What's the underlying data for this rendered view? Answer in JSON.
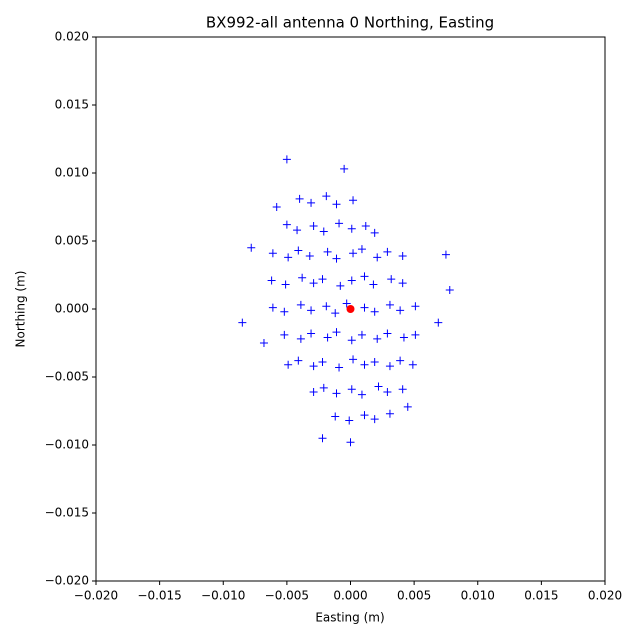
{
  "chart_data": {
    "type": "scatter",
    "title": "BX992-all antenna 0 Northing, Easting",
    "xlabel": "Easting (m)",
    "ylabel": "Northing (m)",
    "xlim": [
      -0.02,
      0.02
    ],
    "ylim": [
      -0.02,
      0.02
    ],
    "xticks": [
      {
        "value": -0.02,
        "label": "−0.020"
      },
      {
        "value": -0.015,
        "label": "−0.015"
      },
      {
        "value": -0.01,
        "label": "−0.010"
      },
      {
        "value": -0.005,
        "label": "−0.005"
      },
      {
        "value": 0,
        "label": "0.000"
      },
      {
        "value": 0.005,
        "label": "0.005"
      },
      {
        "value": 0.01,
        "label": "0.010"
      },
      {
        "value": 0.015,
        "label": "0.015"
      },
      {
        "value": 0.02,
        "label": "0.020"
      }
    ],
    "yticks": [
      {
        "value": -0.02,
        "label": "−0.020"
      },
      {
        "value": -0.015,
        "label": "−0.015"
      },
      {
        "value": -0.01,
        "label": "−0.010"
      },
      {
        "value": -0.005,
        "label": "−0.005"
      },
      {
        "value": 0,
        "label": "0.000"
      },
      {
        "value": 0.005,
        "label": "0.005"
      },
      {
        "value": 0.01,
        "label": "0.010"
      },
      {
        "value": 0.015,
        "label": "0.015"
      },
      {
        "value": 0.02,
        "label": "0.020"
      }
    ],
    "series": [
      {
        "color": "#0000ff",
        "marker": "+",
        "x": [
          -0.004,
          -0.0031,
          -0.0019,
          -0.0011,
          0.0002,
          -0.005,
          -0.0042,
          -0.0029,
          -0.0021,
          -0.0009,
          0.0001,
          0.0012,
          0.0019,
          -0.0061,
          -0.0049,
          -0.0041,
          -0.0032,
          -0.0018,
          -0.0011,
          0.0002,
          0.0009,
          0.0021,
          0.0029,
          0.0041,
          -0.0062,
          -0.0051,
          -0.0038,
          -0.0029,
          -0.0022,
          -0.0008,
          0.0001,
          0.0011,
          0.0018,
          0.0032,
          0.0041,
          -0.0061,
          -0.0052,
          -0.0039,
          -0.0031,
          -0.0019,
          -0.0012,
          -0.0003,
          0.0011,
          0.0019,
          0.0031,
          0.0039,
          0.0051,
          -0.0052,
          -0.0039,
          -0.0031,
          -0.0018,
          -0.0011,
          0.0001,
          0.0009,
          0.0021,
          0.0029,
          0.0042,
          0.0051,
          -0.0049,
          -0.0041,
          -0.0029,
          -0.0022,
          -0.0009,
          0.0002,
          0.0011,
          0.0019,
          0.0031,
          0.0039,
          0.0049,
          -0.0029,
          -0.0021,
          -0.0011,
          0.0001,
          0.0009,
          0.0022,
          0.0029,
          0.0041,
          -0.0012,
          -0.0001,
          0.0011,
          0.0019,
          0.0031,
          -0.005,
          -0.0085,
          0.0078,
          0.0,
          -0.0005,
          -0.0078,
          0.0075,
          -0.0068,
          0.0069,
          -0.0022,
          0.0045,
          -0.0058
        ],
        "y": [
          0.0081,
          0.0078,
          0.0083,
          0.0077,
          0.008,
          0.0062,
          0.0058,
          0.0061,
          0.0057,
          0.0063,
          0.0059,
          0.0061,
          0.0056,
          0.0041,
          0.0038,
          0.0043,
          0.0039,
          0.0042,
          0.0037,
          0.0041,
          0.0044,
          0.0038,
          0.0042,
          0.0039,
          0.0021,
          0.0018,
          0.0023,
          0.0019,
          0.0022,
          0.0017,
          0.0021,
          0.0024,
          0.0018,
          0.0022,
          0.0019,
          0.0001,
          -0.0002,
          0.0003,
          -0.0001,
          0.0002,
          -0.0003,
          0.0004,
          0.0001,
          -0.0002,
          0.0003,
          -0.0001,
          0.0002,
          -0.0019,
          -0.0022,
          -0.0018,
          -0.0021,
          -0.0017,
          -0.0023,
          -0.0019,
          -0.0022,
          -0.0018,
          -0.0021,
          -0.0019,
          -0.0041,
          -0.0038,
          -0.0042,
          -0.0039,
          -0.0043,
          -0.0037,
          -0.0041,
          -0.0039,
          -0.0042,
          -0.0038,
          -0.0041,
          -0.0061,
          -0.0058,
          -0.0062,
          -0.0059,
          -0.0063,
          -0.0057,
          -0.0061,
          -0.0059,
          -0.0079,
          -0.0082,
          -0.0078,
          -0.0081,
          -0.0077,
          0.011,
          -0.001,
          0.0014,
          -0.0098,
          0.0103,
          0.0045,
          0.004,
          -0.0025,
          -0.001,
          -0.0095,
          -0.0072,
          0.0075
        ]
      },
      {
        "color": "#ff0000",
        "marker": "o",
        "x": [
          0
        ],
        "y": [
          0
        ]
      }
    ]
  }
}
